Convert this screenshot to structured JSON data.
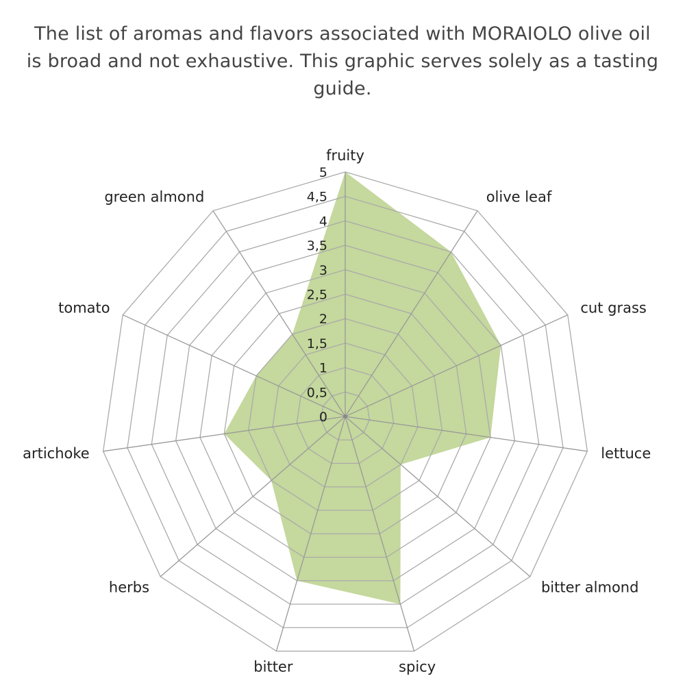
{
  "title_lines": [
    "The list of aromas and flavors associated with MORAIOLO olive oil",
    "is broad and not exhaustive. This graphic serves solely as a tasting guide."
  ],
  "chart_data": {
    "type": "radar",
    "categories": [
      "fruity",
      "olive leaf",
      "cut grass",
      "lettuce",
      "bitter almond",
      "spicy",
      "bitter",
      "herbs",
      "artichoke",
      "tomato",
      "green almond"
    ],
    "values": [
      5,
      4,
      3.5,
      3,
      1.5,
      4,
      3.5,
      2,
      2.5,
      2,
      2
    ],
    "rlim": [
      0,
      5
    ],
    "ticks": [
      "0",
      "0,5",
      "1",
      "1,5",
      "2",
      "2,5",
      "3",
      "3,5",
      "4",
      "4,5",
      "5"
    ],
    "grid": true,
    "fill_color": "#c5d89d",
    "grid_color": "#aaaaaa"
  }
}
